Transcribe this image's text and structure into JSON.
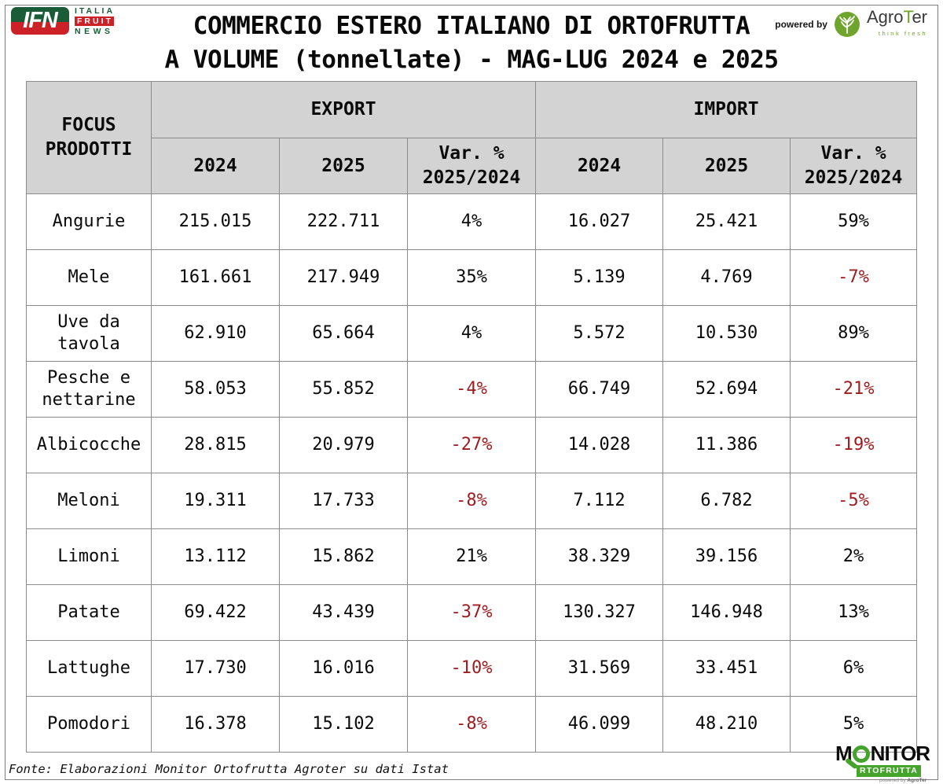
{
  "header": {
    "ifn_logo": {
      "abbr": "IFN",
      "line1": "ITALIA",
      "line2": "FRUIT",
      "line3": "NEWS"
    },
    "title_line1": "COMMERCIO ESTERO ITALIANO DI ORTOFRUTTA",
    "title_line2": "A VOLUME (tonnellate) - MAG-LUG 2024 e 2025",
    "powered_by": "powered by",
    "agroter": {
      "name_prefix": "Agro",
      "name_t": "T",
      "name_suffix": "er",
      "tagline": "think fresh"
    }
  },
  "table": {
    "corner_header": "FOCUS PRODOTTI",
    "groups": [
      {
        "label": "EXPORT"
      },
      {
        "label": "IMPORT"
      }
    ],
    "sub_headers": [
      "2024",
      "2025",
      "Var. % 2025/2024"
    ],
    "rows": [
      {
        "product": "Angurie",
        "export": {
          "y2024": "215.015",
          "y2025": "222.711",
          "var": "4%"
        },
        "import": {
          "y2024": "16.027",
          "y2025": "25.421",
          "var": "59%"
        }
      },
      {
        "product": "Mele",
        "export": {
          "y2024": "161.661",
          "y2025": "217.949",
          "var": "35%"
        },
        "import": {
          "y2024": "5.139",
          "y2025": "4.769",
          "var": "-7%"
        }
      },
      {
        "product": "Uve da tavola",
        "export": {
          "y2024": "62.910",
          "y2025": "65.664",
          "var": "4%"
        },
        "import": {
          "y2024": "5.572",
          "y2025": "10.530",
          "var": "89%"
        }
      },
      {
        "product": "Pesche e nettarine",
        "export": {
          "y2024": "58.053",
          "y2025": "55.852",
          "var": "-4%"
        },
        "import": {
          "y2024": "66.749",
          "y2025": "52.694",
          "var": "-21%"
        }
      },
      {
        "product": "Albicocche",
        "export": {
          "y2024": "28.815",
          "y2025": "20.979",
          "var": "-27%"
        },
        "import": {
          "y2024": "14.028",
          "y2025": "11.386",
          "var": "-19%"
        }
      },
      {
        "product": "Meloni",
        "export": {
          "y2024": "19.311",
          "y2025": "17.733",
          "var": "-8%"
        },
        "import": {
          "y2024": "7.112",
          "y2025": "6.782",
          "var": "-5%"
        }
      },
      {
        "product": "Limoni",
        "export": {
          "y2024": "13.112",
          "y2025": "15.862",
          "var": "21%"
        },
        "import": {
          "y2024": "38.329",
          "y2025": "39.156",
          "var": "2%"
        }
      },
      {
        "product": "Patate",
        "export": {
          "y2024": "69.422",
          "y2025": "43.439",
          "var": "-37%"
        },
        "import": {
          "y2024": "130.327",
          "y2025": "146.948",
          "var": "13%"
        }
      },
      {
        "product": "Lattughe",
        "export": {
          "y2024": "17.730",
          "y2025": "16.016",
          "var": "-10%"
        },
        "import": {
          "y2024": "31.569",
          "y2025": "33.451",
          "var": "6%"
        }
      },
      {
        "product": "Pomodori",
        "export": {
          "y2024": "16.378",
          "y2025": "15.102",
          "var": "-8%"
        },
        "import": {
          "y2024": "46.099",
          "y2025": "48.210",
          "var": "5%"
        }
      }
    ]
  },
  "footer": {
    "source": "Fonte: Elaborazioni Monitor Ortofrutta Agroter su dati Istat",
    "monitor_logo": {
      "m_prefix": "M",
      "m_suffix": "NITOR",
      "line2": "RTOFRUTTA",
      "powered_prefix": "powered by ",
      "powered_brand": "AgroTer"
    }
  },
  "colors": {
    "header_gray": "#d3d3d3",
    "border_gray": "#8c8c8c",
    "negative_red": "#9e1b1e",
    "accent_green": "#44a42c",
    "brand_green_dark": "#1b5c38",
    "brand_red": "#cc2127",
    "agroter_green": "#6fa42d"
  },
  "chart_data": {
    "type": "table",
    "title": "COMMERCIO ESTERO ITALIANO DI ORTOFRUTTA A VOLUME (tonnellate) - MAG-LUG 2024 e 2025",
    "unit": "tonnellate",
    "period": "MAG-LUG 2024 e 2025",
    "row_header": "FOCUS PRODOTTI",
    "column_groups": [
      "EXPORT",
      "IMPORT"
    ],
    "columns": [
      "EXPORT 2024",
      "EXPORT 2025",
      "EXPORT Var. % 2025/2024",
      "IMPORT 2024",
      "IMPORT 2025",
      "IMPORT Var. % 2025/2024"
    ],
    "rows": [
      {
        "product": "Angurie",
        "export_2024": 215015,
        "export_2025": 222711,
        "export_var_pct": 4,
        "import_2024": 16027,
        "import_2025": 25421,
        "import_var_pct": 59
      },
      {
        "product": "Mele",
        "export_2024": 161661,
        "export_2025": 217949,
        "export_var_pct": 35,
        "import_2024": 5139,
        "import_2025": 4769,
        "import_var_pct": -7
      },
      {
        "product": "Uve da tavola",
        "export_2024": 62910,
        "export_2025": 65664,
        "export_var_pct": 4,
        "import_2024": 5572,
        "import_2025": 10530,
        "import_var_pct": 89
      },
      {
        "product": "Pesche e nettarine",
        "export_2024": 58053,
        "export_2025": 55852,
        "export_var_pct": -4,
        "import_2024": 66749,
        "import_2025": 52694,
        "import_var_pct": -21
      },
      {
        "product": "Albicocche",
        "export_2024": 28815,
        "export_2025": 20979,
        "export_var_pct": -27,
        "import_2024": 14028,
        "import_2025": 11386,
        "import_var_pct": -19
      },
      {
        "product": "Meloni",
        "export_2024": 19311,
        "export_2025": 17733,
        "export_var_pct": -8,
        "import_2024": 7112,
        "import_2025": 6782,
        "import_var_pct": -5
      },
      {
        "product": "Limoni",
        "export_2024": 13112,
        "export_2025": 15862,
        "export_var_pct": 21,
        "import_2024": 38329,
        "import_2025": 39156,
        "import_var_pct": 2
      },
      {
        "product": "Patate",
        "export_2024": 69422,
        "export_2025": 43439,
        "export_var_pct": -37,
        "import_2024": 130327,
        "import_2025": 146948,
        "import_var_pct": 13
      },
      {
        "product": "Lattughe",
        "export_2024": 17730,
        "export_2025": 16016,
        "export_var_pct": -10,
        "import_2024": 31569,
        "import_2025": 33451,
        "import_var_pct": 6
      },
      {
        "product": "Pomodori",
        "export_2024": 16378,
        "export_2025": 15102,
        "export_var_pct": -8,
        "import_2024": 46099,
        "import_2025": 48210,
        "import_var_pct": 5
      }
    ],
    "source": "Fonte: Elaborazioni Monitor Ortofrutta Agroter su dati Istat"
  }
}
